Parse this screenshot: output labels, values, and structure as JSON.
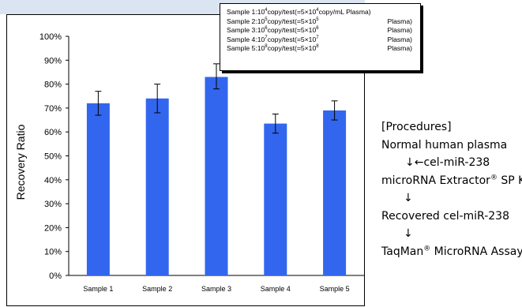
{
  "chart_data": {
    "type": "bar",
    "categories": [
      "Sample 1",
      "Sample 2",
      "Sample 3",
      "Sample 4",
      "Sample 5"
    ],
    "values": [
      72,
      74,
      83,
      63.5,
      69
    ],
    "error_bars": [
      [
        67,
        77
      ],
      [
        68,
        80
      ],
      [
        78,
        88.5
      ],
      [
        59.5,
        67.5
      ],
      [
        65,
        73
      ]
    ],
    "ylabel": "Recovery Ratio",
    "ylim": [
      0,
      100
    ],
    "y_ticks": [
      0,
      10,
      20,
      30,
      40,
      50,
      60,
      70,
      80,
      90,
      100
    ],
    "y_tick_labels": [
      "0%",
      "10%",
      "20%",
      "30%",
      "40%",
      "50%",
      "60%",
      "70%",
      "80%",
      "90%",
      "100%"
    ],
    "bar_color": "#3366ee",
    "grid": false,
    "legend_placement": "top-right"
  },
  "legend": {
    "items": [
      {
        "prefix": "Sample 1:10",
        "exp1": "4",
        "mid": "copy/test(=5×10",
        "exp2": "4",
        "rest": "copy/mL Plasma)",
        "tail": ""
      },
      {
        "prefix": "Sample 2:10",
        "exp1": "5",
        "mid": "copy/test(=5×10",
        "exp2": "5",
        "rest": "",
        "tail": "Plasma)"
      },
      {
        "prefix": "Sample 3:10",
        "exp1": "6",
        "mid": "copy/test(=5×10",
        "exp2": "6",
        "rest": "",
        "tail": "Plasma)"
      },
      {
        "prefix": "Sample 4:10",
        "exp1": "7",
        "mid": "copy/test(=5×10",
        "exp2": "7",
        "rest": "",
        "tail": "Plasma)"
      },
      {
        "prefix": "Sample 5:10",
        "exp1": "8",
        "mid": "copy/test(=5×10",
        "exp2": "8",
        "rest": "",
        "tail": "Plasma)"
      }
    ]
  },
  "procedures": {
    "heading": "[Procedures]",
    "step1": "Normal human plasma",
    "arrow1": "↓←cel-miR-238",
    "step2": "microRNA Extractor",
    "step2_reg": "®",
    "step2_rest": " SP Kit",
    "arrow2": "↓",
    "step3": "Recovered cel-miR-238",
    "arrow3": "↓",
    "step4": "TaqMan",
    "step4_reg": "®",
    "step4_rest": " MicroRNA Assay"
  }
}
